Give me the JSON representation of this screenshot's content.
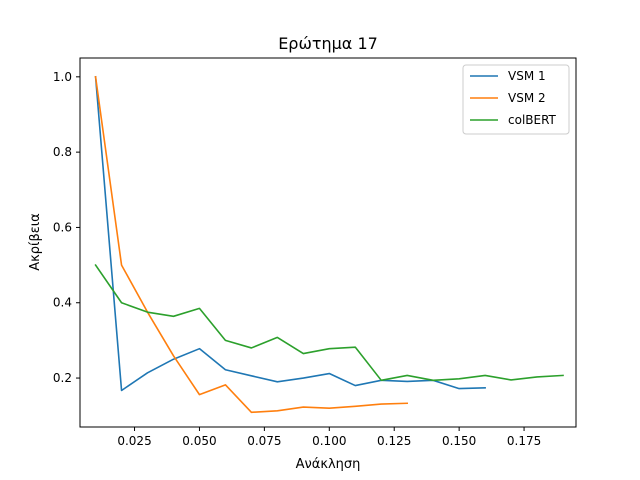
{
  "chart_data": {
    "type": "line",
    "title": "Ερώτημα 17",
    "xlabel": "Ανάκληση",
    "ylabel": "Ακρίβεια",
    "xlim": [
      0.004,
      0.195
    ],
    "ylim": [
      0.07,
      1.05
    ],
    "xticks": [
      0.025,
      0.05,
      0.075,
      0.1,
      0.125,
      0.15,
      0.175
    ],
    "xtick_labels": [
      "0.025",
      "0.050",
      "0.075",
      "0.100",
      "0.125",
      "0.150",
      "0.175"
    ],
    "yticks": [
      0.2,
      0.4,
      0.6,
      0.8,
      1.0
    ],
    "ytick_labels": [
      "0.2",
      "0.4",
      "0.6",
      "0.8",
      "1.0"
    ],
    "grid": false,
    "legend_position": "top-right",
    "series": [
      {
        "name": "VSM 1",
        "color": "#1f77b4",
        "x": [
          0.01,
          0.02,
          0.03,
          0.04,
          0.05,
          0.06,
          0.07,
          0.08,
          0.09,
          0.1,
          0.11,
          0.12,
          0.13,
          0.14,
          0.15,
          0.16
        ],
        "y": [
          1.0,
          0.167,
          0.214,
          0.25,
          0.278,
          0.222,
          0.206,
          0.19,
          0.2,
          0.212,
          0.18,
          0.194,
          0.191,
          0.194,
          0.172,
          0.174
        ]
      },
      {
        "name": "VSM 2",
        "color": "#ff7f0e",
        "x": [
          0.01,
          0.02,
          0.03,
          0.04,
          0.05,
          0.06,
          0.07,
          0.08,
          0.09,
          0.1,
          0.11,
          0.12,
          0.13
        ],
        "y": [
          1.0,
          0.5,
          0.375,
          0.259,
          0.156,
          0.182,
          0.109,
          0.113,
          0.123,
          0.12,
          0.125,
          0.131,
          0.133
        ]
      },
      {
        "name": "colBERT",
        "color": "#2ca02c",
        "x": [
          0.01,
          0.02,
          0.03,
          0.04,
          0.05,
          0.06,
          0.07,
          0.08,
          0.09,
          0.1,
          0.11,
          0.12,
          0.13,
          0.14,
          0.15,
          0.16,
          0.17,
          0.18,
          0.19
        ],
        "y": [
          0.5,
          0.4,
          0.375,
          0.364,
          0.385,
          0.3,
          0.28,
          0.308,
          0.265,
          0.278,
          0.282,
          0.194,
          0.207,
          0.194,
          0.198,
          0.207,
          0.195,
          0.203,
          0.207
        ]
      }
    ]
  }
}
